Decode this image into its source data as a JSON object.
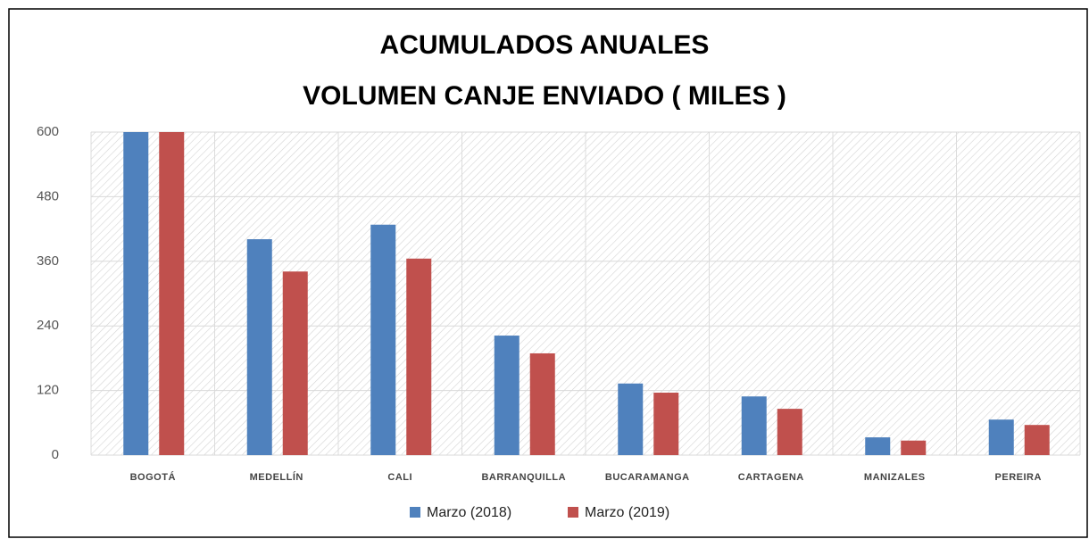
{
  "chart_data": {
    "type": "bar",
    "title": [
      "ACUMULADOS  ANUALES",
      "VOLUMEN CANJE ENVIADO  ( MILES )"
    ],
    "categories": [
      "BOGOTÁ",
      "MEDELLÍN",
      "CALI",
      "BARRANQUILLA",
      "BUCARAMANGA",
      "CARTAGENA",
      "MANIZALES",
      "PEREIRA"
    ],
    "series": [
      {
        "name": "Marzo (2018)",
        "color": "#4f81bd",
        "values": [
          600,
          401,
          428,
          222,
          133,
          109,
          33,
          66
        ]
      },
      {
        "name": "Marzo (2019)",
        "color": "#c0504d",
        "values": [
          600,
          341,
          365,
          189,
          116,
          86,
          27,
          56
        ]
      }
    ],
    "ylim": [
      0,
      600
    ],
    "yticks": [
      0,
      120,
      240,
      360,
      480,
      600
    ],
    "grid": true,
    "legend": "bottom"
  }
}
